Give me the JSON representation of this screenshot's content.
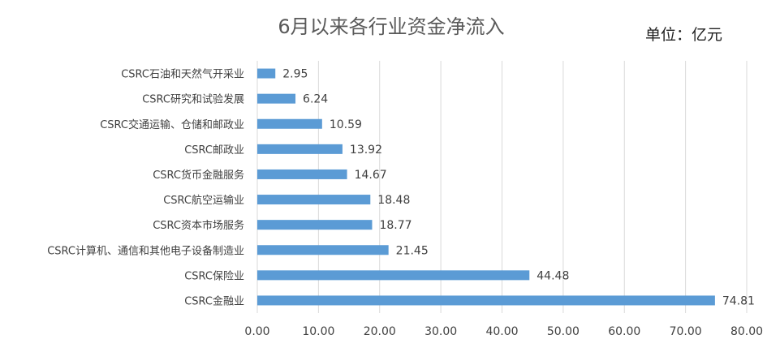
{
  "chart_data": {
    "type": "bar",
    "orientation": "horizontal",
    "title": "6月以来各行业资金净流入",
    "unit_label": "单位：亿元",
    "categories": [
      "CSRC石油和天然气开采业",
      "CSRC研究和试验发展",
      "CSRC交通运输、仓储和邮政业",
      "CSRC邮政业",
      "CSRC货币金融服务",
      "CSRC航空运输业",
      "CSRC资本市场服务",
      "CSRC计算机、通信和其他电子设备制造业",
      "CSRC保险业",
      "CSRC金融业"
    ],
    "values": [
      2.95,
      6.24,
      10.59,
      13.92,
      14.67,
      18.48,
      18.77,
      21.45,
      44.48,
      74.81
    ],
    "value_labels": [
      "2.95",
      "6.24",
      "10.59",
      "13.92",
      "14.67",
      "18.48",
      "18.77",
      "21.45",
      "44.48",
      "74.81"
    ],
    "xlim": [
      0,
      80
    ],
    "x_ticks": [
      "0.00",
      "10.00",
      "20.00",
      "30.00",
      "40.00",
      "50.00",
      "60.00",
      "70.00",
      "80.00"
    ],
    "grid": true,
    "legend": "none",
    "colors": {
      "bar": "#5b9bd5",
      "grid": "#d9d9d9",
      "text": "#404040"
    }
  }
}
